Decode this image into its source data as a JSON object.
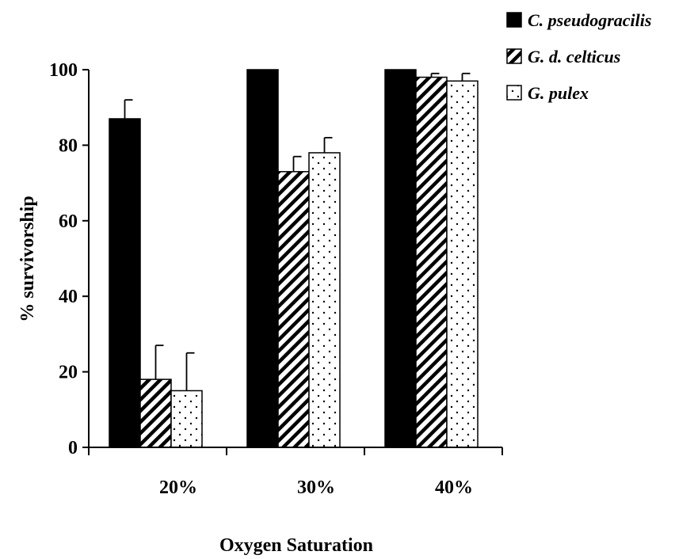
{
  "chart_data": {
    "type": "bar",
    "categories": [
      "20%",
      "30%",
      "40%"
    ],
    "series": [
      {
        "name": "C. pseudogracilis",
        "values": [
          87,
          100,
          100
        ],
        "errors": [
          5,
          0,
          0
        ],
        "pattern": "solid",
        "color": "#000000"
      },
      {
        "name": "G. d. celticus",
        "values": [
          18,
          73,
          98
        ],
        "errors": [
          9,
          4,
          1
        ],
        "pattern": "diagonal-hatch",
        "color": "#000000"
      },
      {
        "name": "G. pulex",
        "values": [
          15,
          78,
          97
        ],
        "errors": [
          10,
          4,
          2
        ],
        "pattern": "dots",
        "color": "#000000"
      }
    ],
    "title": "",
    "xlabel": "Oxygen Saturation",
    "ylabel": "% survivorship",
    "ylim": [
      0,
      100
    ],
    "yticks": [
      "0",
      "20",
      "40",
      "60",
      "80",
      "100"
    ],
    "legend_position": "top-right",
    "grid": false
  }
}
